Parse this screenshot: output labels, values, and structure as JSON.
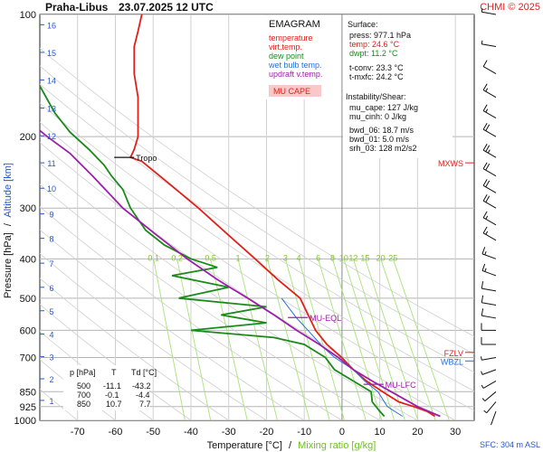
{
  "header": {
    "station": "Praha-Libus",
    "datetime": "23.07.2025 12 UTC",
    "copyright": "CHMI © 2025"
  },
  "legend": {
    "title": "EMAGRAM",
    "items": [
      {
        "label": "temperature",
        "color": "#e0211b"
      },
      {
        "label": "virt.temp.",
        "color": "#e0211b"
      },
      {
        "label": "dew point",
        "color": "#1a8a1a"
      },
      {
        "label": "wet bulb temp.",
        "color": "#2a6fd6"
      },
      {
        "label": "updraft v.temp.",
        "color": "#9b1fa8"
      }
    ],
    "mu_cape_label": "MU CAPE"
  },
  "stats": {
    "surface_title": "Surface:",
    "press": "press: 977.1 hPa",
    "temp": "temp: 24.6 °C",
    "dwpt": "dwpt: 11.2 °C",
    "tconv": "t-conv: 23.3 °C",
    "tmxfc": "t-mxfc: 24.2 °C",
    "inst_title": "Instability/Shear:",
    "mu_cape": "mu_cape: 127 J/kg",
    "mu_cinh": "mu_cinh: 0 J/kg",
    "bwd_06": "bwd_06: 18.7 m/s",
    "bwd_01": "bwd_01: 5.0 m/s",
    "srh_03": "srh_03: 128 m2/s2"
  },
  "table": {
    "headers": [
      "p [hPa]",
      "T",
      "Td [°C]"
    ],
    "rows": [
      [
        "500",
        "-11.1",
        "-43.2"
      ],
      [
        "700",
        "-0.1",
        "-4.4"
      ],
      [
        "850",
        "10.7",
        "7.7"
      ]
    ]
  },
  "footer": {
    "sfc": "SFC: 304 m ASL"
  },
  "chart_data": {
    "type": "line",
    "xlabel": "Temperature [°C]",
    "xlabel_sep": "/",
    "xlabel2": "Mixing ratio [g/kg]",
    "ylabel": "Pressure [hPa]",
    "ylabel_sep": "/",
    "ylabel2": "Altitude [km]",
    "xlim": [
      -80,
      35
    ],
    "ylim": [
      1000,
      100
    ],
    "y_scale": "log",
    "x_ticks": [
      -70,
      -60,
      -50,
      -40,
      -30,
      -20,
      -10,
      0,
      10,
      20,
      30
    ],
    "pressure_ticks": [
      100,
      200,
      300,
      400,
      500,
      600,
      700,
      850,
      925,
      1000
    ],
    "altitude_ticks": [
      {
        "km": "1",
        "p": 893
      },
      {
        "km": "2",
        "p": 790
      },
      {
        "km": "3",
        "p": 697
      },
      {
        "km": "4",
        "p": 613
      },
      {
        "km": "5",
        "p": 537
      },
      {
        "km": "6",
        "p": 470
      },
      {
        "km": "7",
        "p": 410
      },
      {
        "km": "8",
        "p": 356
      },
      {
        "km": "9",
        "p": 310
      },
      {
        "km": "10",
        "p": 268
      },
      {
        "km": "11",
        "p": 232
      },
      {
        "km": "12",
        "p": 199
      },
      {
        "km": "13",
        "p": 170
      },
      {
        "km": "14",
        "p": 145
      },
      {
        "km": "15",
        "p": 124
      },
      {
        "km": "16",
        "p": 106
      }
    ],
    "mixing_ratio_labels": [
      "0.1",
      "0.2",
      "0.5",
      "1",
      "2",
      "3",
      "4",
      "6",
      "8",
      "10",
      "12",
      "15",
      "20",
      "25"
    ],
    "mixing_ratio_label_p": 405,
    "series": [
      {
        "name": "temperature",
        "color": "#e0211b",
        "points": [
          [
            24.6,
            977
          ],
          [
            22.5,
            950
          ],
          [
            19,
            925
          ],
          [
            15,
            900
          ],
          [
            10.7,
            850
          ],
          [
            6.5,
            800
          ],
          [
            3,
            750
          ],
          [
            -0.1,
            700
          ],
          [
            -4,
            650
          ],
          [
            -7,
            600
          ],
          [
            -11.1,
            500
          ],
          [
            -17,
            450
          ],
          [
            -23,
            400
          ],
          [
            -30,
            350
          ],
          [
            -38,
            300
          ],
          [
            -46,
            260
          ],
          [
            -53,
            230
          ],
          [
            -56,
            225
          ],
          [
            -55,
            215
          ],
          [
            -54,
            200
          ],
          [
            -54,
            180
          ],
          [
            -54,
            160
          ],
          [
            -55,
            140
          ],
          [
            -55,
            120
          ],
          [
            -54,
            110
          ],
          [
            -53,
            100
          ]
        ]
      },
      {
        "name": "dew point",
        "color": "#1a8a1a",
        "points": [
          [
            11.2,
            977
          ],
          [
            10,
            950
          ],
          [
            9,
            925
          ],
          [
            8,
            900
          ],
          [
            7.7,
            850
          ],
          [
            3,
            800
          ],
          [
            -2,
            750
          ],
          [
            -4.4,
            700
          ],
          [
            -10,
            650
          ],
          [
            -18,
            625
          ],
          [
            -40,
            600
          ],
          [
            -20,
            575
          ],
          [
            -32,
            550
          ],
          [
            -20,
            525
          ],
          [
            -43.2,
            500
          ],
          [
            -30,
            470
          ],
          [
            -45,
            440
          ],
          [
            -33,
            420
          ],
          [
            -40,
            400
          ],
          [
            -47,
            370
          ],
          [
            -52,
            340
          ],
          [
            -56,
            300
          ],
          [
            -58,
            270
          ],
          [
            -61,
            250
          ],
          [
            -63,
            235
          ],
          [
            -67,
            215
          ],
          [
            -72,
            195
          ],
          [
            -76,
            175
          ],
          [
            -80,
            150
          ]
        ]
      },
      {
        "name": "wet bulb temp.",
        "color": "#2a6fd6",
        "points": [
          [
            16,
            977
          ],
          [
            12,
            925
          ],
          [
            9.5,
            850
          ],
          [
            6,
            800
          ],
          [
            3,
            750
          ],
          [
            -2,
            700
          ],
          [
            -5,
            660
          ],
          [
            -9,
            600
          ],
          [
            -12,
            560
          ],
          [
            -16,
            500
          ]
        ]
      },
      {
        "name": "updraft v.temp.",
        "color": "#9b1fa8",
        "points": [
          [
            26,
            977
          ],
          [
            20,
            925
          ],
          [
            13,
            850
          ],
          [
            8,
            800
          ],
          [
            3,
            750
          ],
          [
            -1,
            700
          ],
          [
            -6,
            650
          ],
          [
            -12,
            600
          ],
          [
            -18,
            550
          ],
          [
            -25,
            500
          ],
          [
            -33,
            450
          ],
          [
            -41,
            400
          ],
          [
            -49,
            350
          ],
          [
            -58,
            300
          ],
          [
            -66,
            250
          ],
          [
            -72,
            220
          ],
          [
            -78,
            200
          ],
          [
            -84,
            180
          ],
          [
            -90,
            160
          ]
        ]
      }
    ],
    "annotations": [
      {
        "label": "Tropo",
        "p": 225,
        "t": -56,
        "color": "#111111"
      },
      {
        "label": "MU-EQL",
        "p": 558,
        "t": -10,
        "color": "#9b1fa8"
      },
      {
        "label": "MU-LFC",
        "p": 815,
        "t": 10,
        "color": "#9b1fa8"
      }
    ],
    "side_labels": [
      {
        "label": "MXWS",
        "p": 232,
        "color": "#e0211b"
      },
      {
        "label": "FZLV",
        "p": 680,
        "color": "#e0211b"
      },
      {
        "label": "WBZL",
        "p": 714,
        "color": "#2a6fd6"
      }
    ],
    "wind_barbs": [
      {
        "p": 100,
        "dir": 280,
        "spd": 5
      },
      {
        "p": 120,
        "dir": 280,
        "spd": 8
      },
      {
        "p": 140,
        "dir": 300,
        "spd": 10
      },
      {
        "p": 160,
        "dir": 300,
        "spd": 15
      },
      {
        "p": 180,
        "dir": 300,
        "spd": 15
      },
      {
        "p": 200,
        "dir": 300,
        "spd": 20
      },
      {
        "p": 225,
        "dir": 300,
        "spd": 25
      },
      {
        "p": 250,
        "dir": 300,
        "spd": 20
      },
      {
        "p": 275,
        "dir": 300,
        "spd": 20
      },
      {
        "p": 300,
        "dir": 300,
        "spd": 20
      },
      {
        "p": 330,
        "dir": 300,
        "spd": 15
      },
      {
        "p": 360,
        "dir": 300,
        "spd": 15
      },
      {
        "p": 400,
        "dir": 290,
        "spd": 15
      },
      {
        "p": 440,
        "dir": 290,
        "spd": 15
      },
      {
        "p": 480,
        "dir": 280,
        "spd": 12
      },
      {
        "p": 520,
        "dir": 280,
        "spd": 12
      },
      {
        "p": 560,
        "dir": 280,
        "spd": 12
      },
      {
        "p": 600,
        "dir": 270,
        "spd": 10
      },
      {
        "p": 650,
        "dir": 270,
        "spd": 10
      },
      {
        "p": 700,
        "dir": 260,
        "spd": 8
      },
      {
        "p": 750,
        "dir": 250,
        "spd": 8
      },
      {
        "p": 800,
        "dir": 240,
        "spd": 8
      },
      {
        "p": 850,
        "dir": 230,
        "spd": 5
      },
      {
        "p": 900,
        "dir": 220,
        "spd": 5
      },
      {
        "p": 950,
        "dir": 200,
        "spd": 3
      }
    ]
  }
}
